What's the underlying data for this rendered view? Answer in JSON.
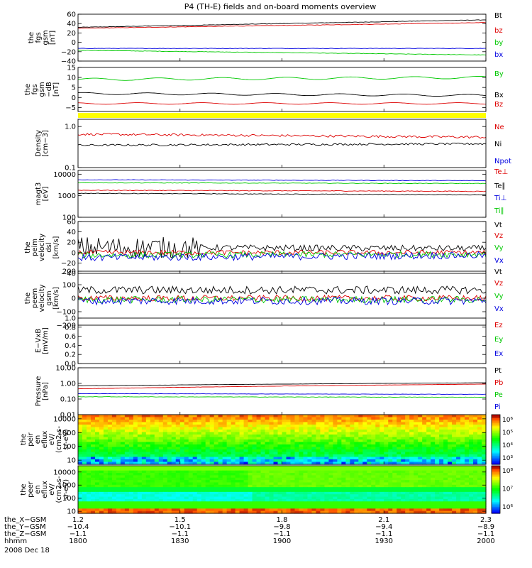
{
  "title": "P4 (TH-E) fields and on-board moments overview",
  "date_label": "2008 Dec 18",
  "colors": {
    "black": "#000000",
    "red": "#dd0000",
    "green": "#00c800",
    "blue": "#0000e0",
    "yellow": "#ffff00"
  },
  "chart_data": [
    {
      "id": "p1",
      "type": "line",
      "ylabel": [
        "the",
        "fgs",
        "gsm",
        "[nT]"
      ],
      "ylim": [
        -40,
        60
      ],
      "yscale": "linear",
      "yticks": [
        "60",
        "40",
        "20",
        "0",
        "−20",
        "−40"
      ],
      "ytick_values": [
        60,
        40,
        20,
        0,
        -20,
        -40
      ],
      "series": [
        {
          "name": "Bt",
          "color": "black",
          "start": 32,
          "end": 48
        },
        {
          "name": "bz",
          "color": "red",
          "start": 30,
          "end": 42
        },
        {
          "name": "by",
          "color": "green",
          "start": -17,
          "end": -27
        },
        {
          "name": "bx",
          "color": "blue",
          "start": -13,
          "end": -13
        }
      ]
    },
    {
      "id": "p2",
      "type": "line",
      "ylabel": [
        "the",
        "fgs",
        "gsm",
        "−dB",
        "[nT]"
      ],
      "ylim": [
        -7,
        15
      ],
      "yscale": "linear",
      "yticks": [
        "15",
        "10",
        "5",
        "0",
        "−5"
      ],
      "ytick_values": [
        15,
        10,
        5,
        0,
        -5
      ],
      "series": [
        {
          "name": "By",
          "color": "green",
          "start": 9,
          "end": 10
        },
        {
          "name": "Bx",
          "color": "black",
          "start": 2,
          "end": 1
        },
        {
          "name": "Bz",
          "color": "red",
          "start": -3,
          "end": -3
        }
      ]
    },
    {
      "id": "p3",
      "type": "line",
      "ylabel": [
        "Density",
        "[cm−3]"
      ],
      "ylim": [
        0.1,
        1.5
      ],
      "yscale": "log",
      "yticks": [
        "1.0",
        "0.1"
      ],
      "ytick_values": [
        1.0,
        0.1
      ],
      "series": [
        {
          "name": "Ne",
          "color": "red",
          "start": 0.65,
          "end": 0.55
        },
        {
          "name": "Ni",
          "color": "black",
          "start": 0.35,
          "end": 0.38
        },
        {
          "name": "Npot",
          "color": "blue"
        }
      ]
    },
    {
      "id": "p4",
      "type": "line",
      "ylabel": [
        "magt3",
        "[eV]"
      ],
      "ylim": [
        100,
        15000
      ],
      "yscale": "log",
      "yticks": [
        "10000",
        "1000",
        "100"
      ],
      "ytick_values": [
        10000,
        1000,
        100
      ],
      "series": [
        {
          "name": "Te⊥",
          "color": "red",
          "start": 1800,
          "end": 1600
        },
        {
          "name": "Te∥",
          "color": "black",
          "start": 1300,
          "end": 1100
        },
        {
          "name": "Ti⊥",
          "color": "blue",
          "start": 5500,
          "end": 5000
        },
        {
          "name": "Ti∥",
          "color": "green",
          "start": 4000,
          "end": 3700
        }
      ]
    },
    {
      "id": "p5",
      "type": "line",
      "ylabel": [
        "the",
        "peim",
        "velocity",
        "dsl",
        "[km/s]"
      ],
      "ylim": [
        -40,
        60
      ],
      "yscale": "linear",
      "yticks": [
        "60",
        "40",
        "20",
        "0",
        "−20",
        "−40"
      ],
      "ytick_values": [
        60,
        40,
        20,
        0,
        -20,
        -40
      ],
      "series": [
        {
          "name": "Vt",
          "color": "black",
          "start": 10,
          "end": 8
        },
        {
          "name": "Vz",
          "color": "red",
          "start": 0,
          "end": 0
        },
        {
          "name": "Vy",
          "color": "green",
          "start": -5,
          "end": -3
        },
        {
          "name": "Vx",
          "color": "blue",
          "start": -10,
          "end": -5
        }
      ]
    },
    {
      "id": "p6",
      "type": "line",
      "ylabel": [
        "the",
        "peem",
        "velocity",
        "gsm",
        "[km/s]"
      ],
      "ylim": [
        -200,
        200
      ],
      "yscale": "linear",
      "yticks": [
        "200",
        "100",
        "0",
        "−100",
        "−200"
      ],
      "ytick_values": [
        200,
        100,
        0,
        -100,
        -200
      ],
      "series": [
        {
          "name": "Vt",
          "color": "black",
          "start": 60,
          "end": 60
        },
        {
          "name": "Vz",
          "color": "red",
          "start": 0,
          "end": 0
        },
        {
          "name": "Vy",
          "color": "green",
          "start": -10,
          "end": -10
        },
        {
          "name": "Vx",
          "color": "blue",
          "start": -20,
          "end": -20
        }
      ]
    },
    {
      "id": "p7",
      "type": "line",
      "ylabel": [
        "E−VxB",
        "[mV/m]"
      ],
      "ylim": [
        0,
        1
      ],
      "yscale": "linear",
      "yticks": [
        "1.0",
        "0.8",
        "0.6",
        "0.4",
        "0.2",
        "0.0"
      ],
      "ytick_values": [
        1.0,
        0.8,
        0.6,
        0.4,
        0.2,
        0.0
      ],
      "series": [
        {
          "name": "Ez",
          "color": "red"
        },
        {
          "name": "Ey",
          "color": "green"
        },
        {
          "name": "Ex",
          "color": "blue"
        }
      ]
    },
    {
      "id": "p8",
      "type": "line",
      "ylabel": [
        "Pressure",
        "[nPa]"
      ],
      "ylim": [
        0.01,
        10
      ],
      "yscale": "log",
      "yticks": [
        "10.00",
        "1.00",
        "0.10",
        "0.01"
      ],
      "ytick_values": [
        10,
        1,
        0.1,
        0.01
      ],
      "series": [
        {
          "name": "Pt",
          "color": "black",
          "start": 0.7,
          "end": 1.1
        },
        {
          "name": "Pb",
          "color": "red",
          "start": 0.45,
          "end": 0.9
        },
        {
          "name": "Pe",
          "color": "green",
          "start": 0.14,
          "end": 0.13
        },
        {
          "name": "Pi",
          "color": "blue",
          "start": 0.22,
          "end": 0.2
        }
      ]
    },
    {
      "id": "p9",
      "type": "heatmap",
      "ylabel": [
        "the",
        "peir",
        "en",
        "eflux",
        "eV/",
        "(cm2-s-",
        "sr-eV)"
      ],
      "ylim": [
        5,
        20000
      ],
      "yscale": "log",
      "yticks": [
        "10000",
        "1000",
        "100",
        "10"
      ],
      "ytick_values": [
        10000,
        1000,
        100,
        10
      ],
      "colorbar_labels": [
        "10⁶",
        "10⁵",
        "10⁴",
        "10³"
      ]
    },
    {
      "id": "p10",
      "type": "heatmap",
      "ylabel": [
        "the",
        "peer",
        "en",
        "eflux",
        "eV/",
        "(cm2-s-",
        "sr-eV)"
      ],
      "ylim": [
        7,
        30000
      ],
      "yscale": "log",
      "yticks": [
        "10000",
        "1000",
        "100",
        "10"
      ],
      "ytick_values": [
        10000,
        1000,
        100,
        10
      ],
      "colorbar_labels": [
        "10⁸",
        "10⁷",
        "10⁶"
      ]
    }
  ],
  "xaxis": {
    "rows": [
      {
        "label": "the_X−GSM",
        "values": [
          "1.2",
          "1.5",
          "1.8",
          "2.1",
          "2.3"
        ]
      },
      {
        "label": "the_Y−GSM",
        "values": [
          "−10.4",
          "−10.1",
          "−9.8",
          "−9.4",
          "−8.9"
        ]
      },
      {
        "label": "the_Z−GSM",
        "values": [
          "−1.1",
          "−1.1",
          "−1.1",
          "−1.1",
          "−1.1"
        ]
      },
      {
        "label": "hhmm",
        "values": [
          "1800",
          "1830",
          "1900",
          "1930",
          "2000"
        ]
      }
    ],
    "tick_times_min": [
      0,
      30,
      60,
      90,
      120
    ]
  }
}
